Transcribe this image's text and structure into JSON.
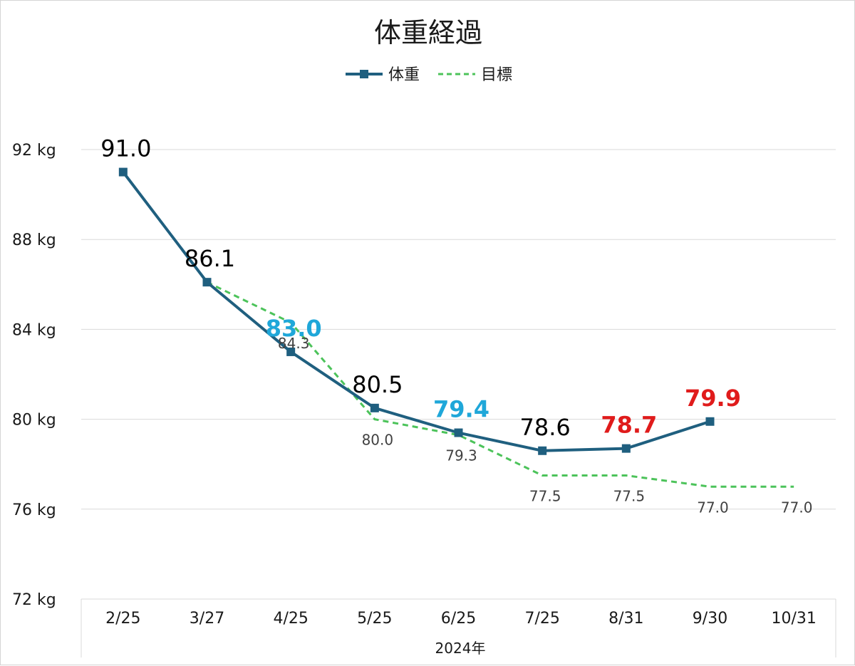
{
  "chart_data": {
    "type": "line",
    "title": "体重経過",
    "categories": [
      "2/25",
      "3/27",
      "4/25",
      "5/25",
      "6/25",
      "7/25",
      "8/31",
      "9/30",
      "10/31"
    ],
    "xlabel": "2024年",
    "ylabel": "",
    "ylim": [
      72,
      92
    ],
    "y_ticks": [
      92,
      88,
      84,
      80,
      76,
      72
    ],
    "y_tick_labels": [
      "92 kg",
      "88 kg",
      "84 kg",
      "80 kg",
      "76 kg",
      "72 kg"
    ],
    "grid": true,
    "legend": "top",
    "series": [
      {
        "name": "体重",
        "style": "solid-square-markers",
        "color": "#1f5f7f",
        "values": [
          91.0,
          86.1,
          83.0,
          80.5,
          79.4,
          78.6,
          78.7,
          79.9,
          null
        ],
        "labels": [
          "91.0",
          "86.1",
          "83.0",
          "80.5",
          "79.4",
          "78.6",
          "78.7",
          "79.9",
          ""
        ],
        "label_colors": [
          "#000000",
          "#000000",
          "#1fa7d9",
          "#000000",
          "#1fa7d9",
          "#000000",
          "#e01b1b",
          "#e01b1b",
          "#000000"
        ],
        "label_bold": [
          false,
          false,
          true,
          false,
          true,
          false,
          true,
          true,
          false
        ]
      },
      {
        "name": "目標",
        "style": "dashed",
        "color": "#4cc35a",
        "values": [
          null,
          86.1,
          84.3,
          80.0,
          79.3,
          77.5,
          77.5,
          77.0,
          77.0
        ],
        "labels": [
          "",
          "",
          "84.3",
          "80.0",
          "79.3",
          "77.5",
          "77.5",
          "77.0",
          "77.0"
        ]
      }
    ]
  }
}
